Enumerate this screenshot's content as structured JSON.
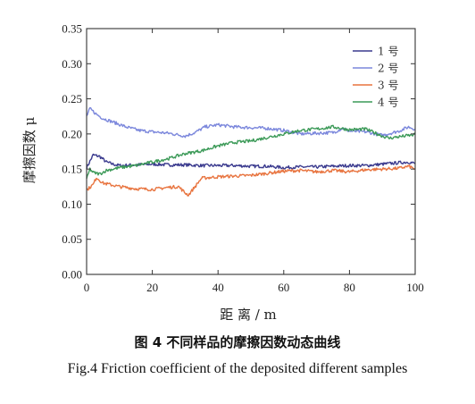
{
  "chart_data": {
    "type": "line",
    "title": "",
    "xlabel": "距 离 / m",
    "ylabel": "摩擦因数 μ",
    "xlim": [
      0,
      100
    ],
    "ylim": [
      0.0,
      0.35
    ],
    "xticks": [
      0,
      20,
      40,
      60,
      80,
      100
    ],
    "yticks": [
      0.0,
      0.05,
      0.1,
      0.15,
      0.2,
      0.25,
      0.3,
      0.35
    ],
    "grid": false,
    "legend_position": "top-right",
    "series": [
      {
        "name": "1 号",
        "color": "#3a3a8e",
        "x": [
          0,
          2,
          4,
          6,
          8,
          10,
          15,
          20,
          25,
          30,
          35,
          40,
          45,
          50,
          55,
          60,
          65,
          70,
          75,
          80,
          85,
          90,
          95,
          98,
          100
        ],
        "y": [
          0.152,
          0.17,
          0.168,
          0.16,
          0.157,
          0.155,
          0.156,
          0.157,
          0.156,
          0.156,
          0.155,
          0.155,
          0.155,
          0.154,
          0.154,
          0.152,
          0.153,
          0.153,
          0.154,
          0.155,
          0.155,
          0.157,
          0.159,
          0.16,
          0.158
        ]
      },
      {
        "name": "2 号",
        "color": "#7b87dc",
        "x": [
          0,
          1,
          3,
          5,
          8,
          12,
          16,
          20,
          25,
          30,
          33,
          36,
          40,
          45,
          50,
          55,
          60,
          65,
          70,
          75,
          78,
          80,
          85,
          90,
          95,
          98,
          100
        ],
        "y": [
          0.225,
          0.236,
          0.228,
          0.222,
          0.217,
          0.21,
          0.205,
          0.203,
          0.201,
          0.197,
          0.202,
          0.21,
          0.213,
          0.21,
          0.209,
          0.208,
          0.205,
          0.2,
          0.201,
          0.202,
          0.208,
          0.204,
          0.203,
          0.198,
          0.204,
          0.21,
          0.207
        ]
      },
      {
        "name": "3 号",
        "color": "#e8743f",
        "x": [
          0,
          2,
          3,
          5,
          8,
          10,
          15,
          20,
          25,
          28,
          30,
          31,
          33,
          35,
          40,
          45,
          50,
          55,
          60,
          65,
          70,
          75,
          80,
          85,
          90,
          95,
          98,
          100
        ],
        "y": [
          0.12,
          0.128,
          0.138,
          0.13,
          0.127,
          0.125,
          0.122,
          0.121,
          0.124,
          0.125,
          0.116,
          0.113,
          0.125,
          0.137,
          0.139,
          0.14,
          0.141,
          0.144,
          0.147,
          0.148,
          0.146,
          0.148,
          0.146,
          0.149,
          0.15,
          0.151,
          0.154,
          0.15
        ]
      },
      {
        "name": "4 号",
        "color": "#3c9a58",
        "x": [
          0,
          1,
          2,
          4,
          6,
          10,
          15,
          20,
          25,
          30,
          35,
          40,
          45,
          50,
          55,
          60,
          65,
          70,
          75,
          80,
          85,
          90,
          92,
          95,
          100
        ],
        "y": [
          0.135,
          0.15,
          0.145,
          0.143,
          0.148,
          0.152,
          0.155,
          0.16,
          0.165,
          0.172,
          0.176,
          0.183,
          0.188,
          0.19,
          0.195,
          0.2,
          0.205,
          0.207,
          0.21,
          0.206,
          0.207,
          0.197,
          0.194,
          0.196,
          0.199
        ]
      }
    ]
  },
  "captions": {
    "cn": "图 4  不同样品的摩擦因数动态曲线",
    "en": "Fig.4  Friction coefficient of the deposited different samples"
  }
}
